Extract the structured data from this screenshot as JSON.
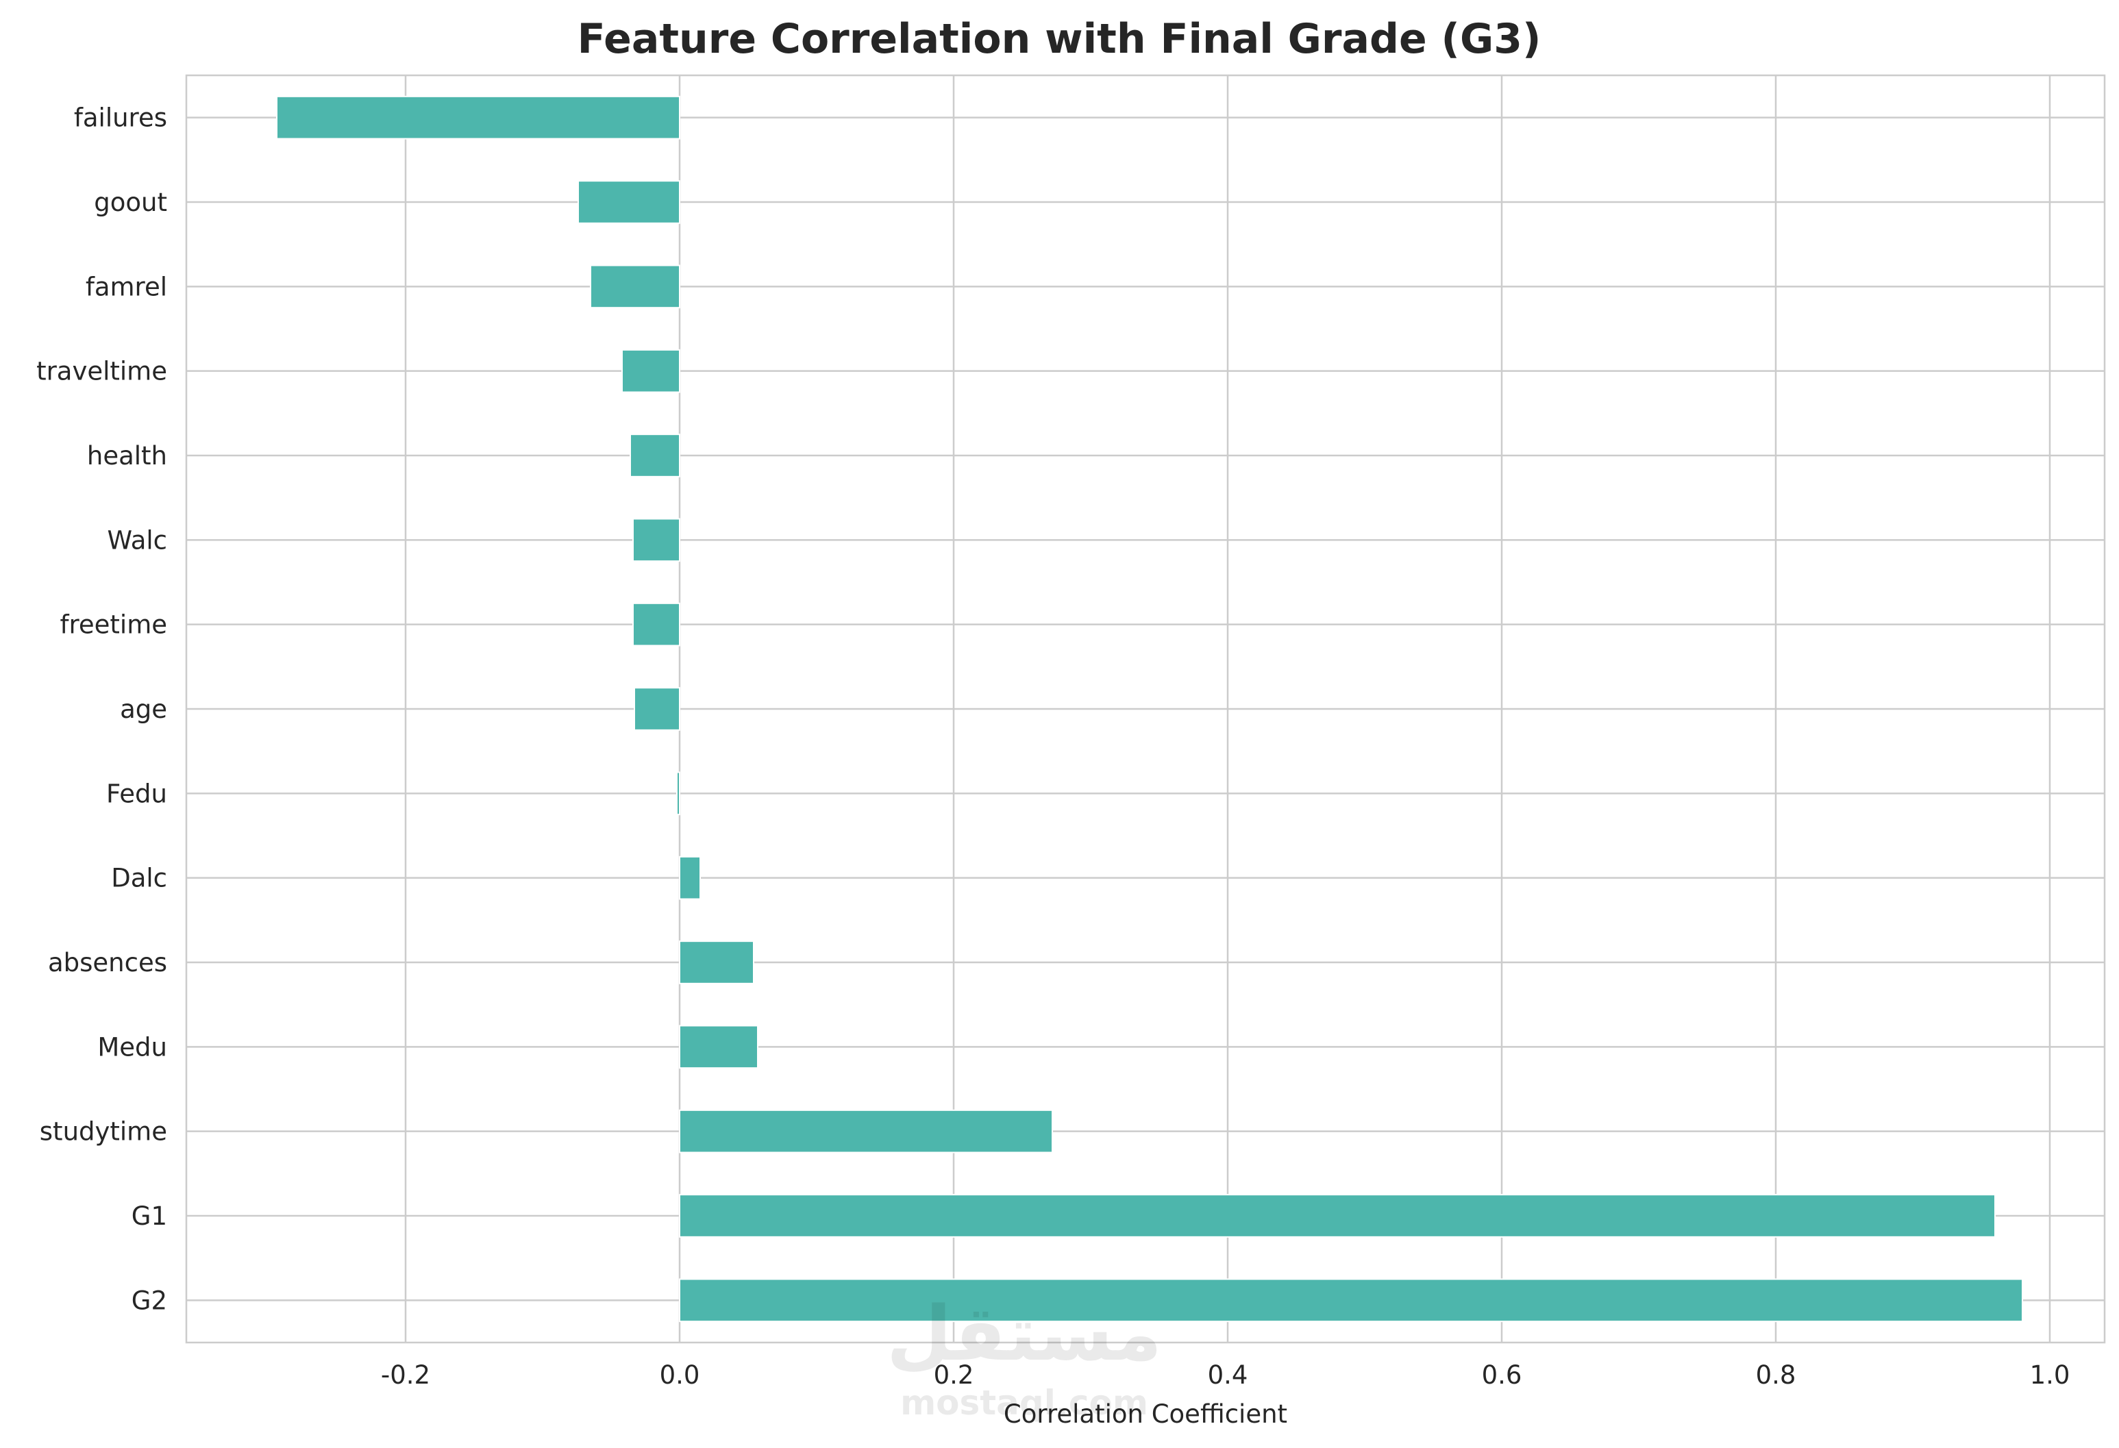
{
  "chart_data": {
    "type": "bar",
    "orientation": "horizontal",
    "title": "Feature Correlation with Final Grade (G3)",
    "xlabel": "Correlation Coefficient",
    "ylabel": "",
    "categories": [
      "failures",
      "goout",
      "famrel",
      "traveltime",
      "health",
      "Walc",
      "freetime",
      "age",
      "Fedu",
      "Dalc",
      "absences",
      "Medu",
      "studytime",
      "G1",
      "G2"
    ],
    "values": [
      -0.294,
      -0.074,
      -0.065,
      -0.042,
      -0.036,
      -0.034,
      -0.034,
      -0.033,
      -0.002,
      0.015,
      0.054,
      0.057,
      0.272,
      0.96,
      0.98
    ],
    "xlim": [
      -0.36,
      1.04
    ],
    "xticks": [
      -0.2,
      0.0,
      0.2,
      0.4,
      0.6,
      0.8,
      1.0
    ],
    "xtick_labels": [
      "-0.2",
      "0.0",
      "0.2",
      "0.4",
      "0.6",
      "0.8",
      "1.0"
    ],
    "grid": true,
    "bar_color": "#4db6ac"
  },
  "watermark": {
    "text": "مستقل",
    "subtext": "mostaql.com"
  }
}
